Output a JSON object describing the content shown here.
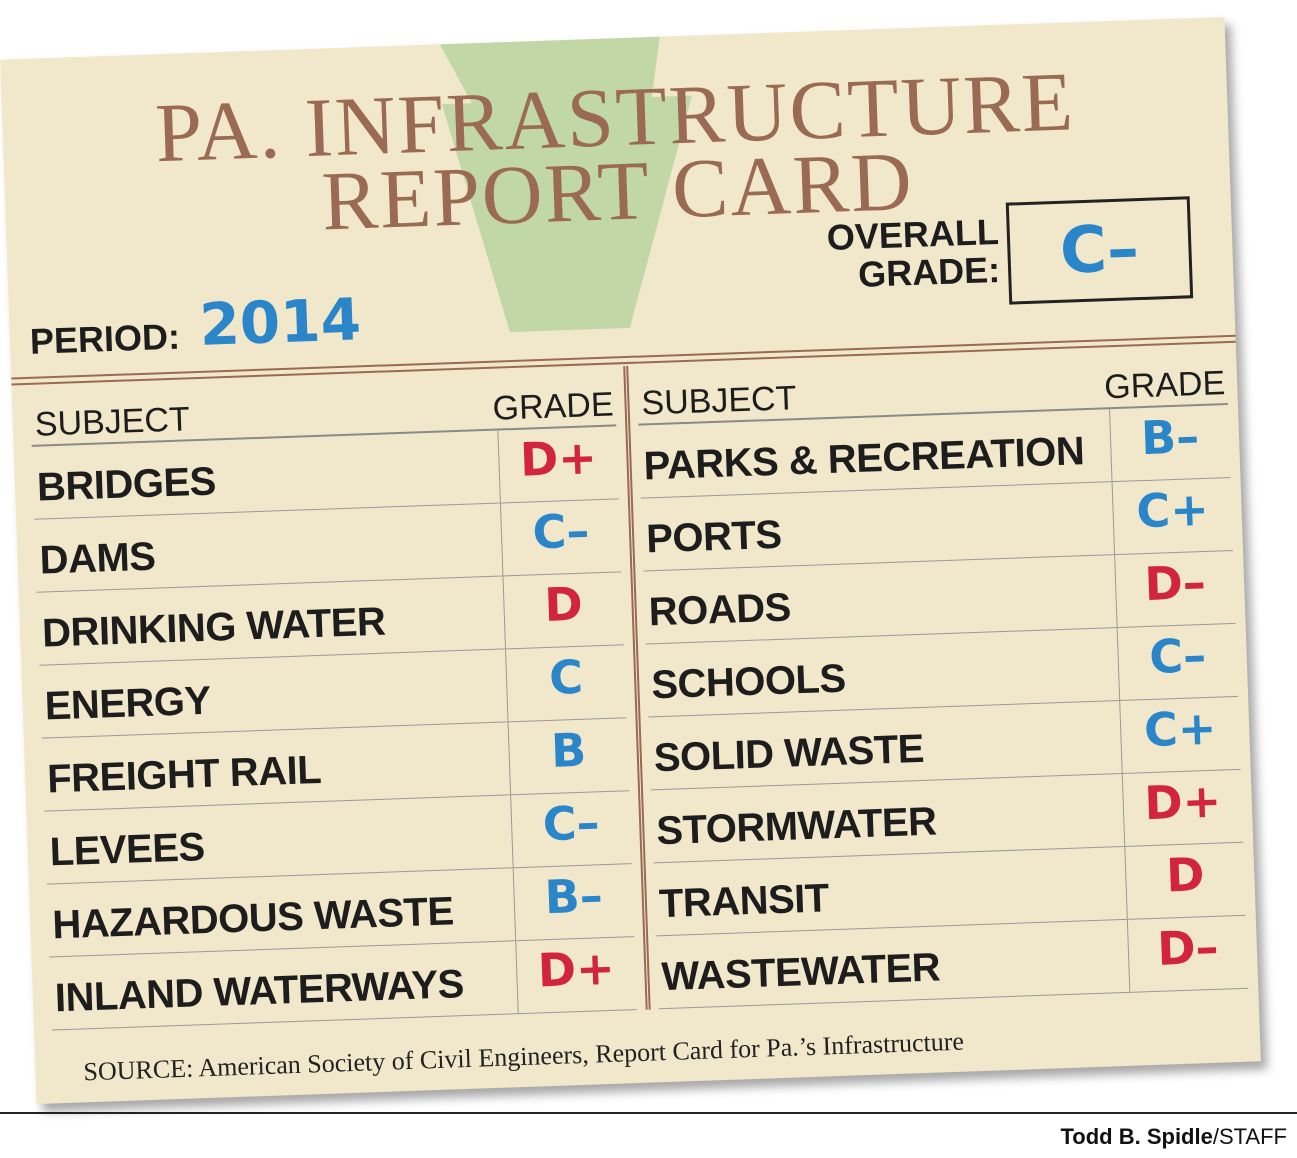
{
  "header": {
    "title": [
      "PA. INFRASTRUCTURE",
      "REPORT CARD"
    ]
  },
  "period": {
    "label": "PERIOD:",
    "value": "2014",
    "color": "#2a86c9"
  },
  "overall": {
    "label": [
      "OVERALL",
      "GRADE:"
    ],
    "value": "C–",
    "color": "#2a86c9"
  },
  "tables": [
    {
      "columns": [
        "SUBJECT",
        "GRADE"
      ],
      "rows": [
        {
          "subject": "BRIDGES",
          "grade": "D+",
          "color": "#d2233f"
        },
        {
          "subject": "DAMS",
          "grade": "C–",
          "color": "#2a86c9"
        },
        {
          "subject": "DRINKING WATER",
          "grade": "D",
          "color": "#d2233f"
        },
        {
          "subject": "ENERGY",
          "grade": "C",
          "color": "#2a86c9"
        },
        {
          "subject": "FREIGHT RAIL",
          "grade": "B",
          "color": "#2a86c9"
        },
        {
          "subject": "LEVEES",
          "grade": "C–",
          "color": "#2a86c9"
        },
        {
          "subject": "HAZARDOUS WASTE",
          "grade": "B–",
          "color": "#2a86c9"
        },
        {
          "subject": "INLAND WATERWAYS",
          "grade": "D+",
          "color": "#d2233f"
        }
      ]
    },
    {
      "columns": [
        "SUBJECT",
        "GRADE"
      ],
      "rows": [
        {
          "subject": "PARKS & RECREATION",
          "grade": "B–",
          "color": "#2a86c9"
        },
        {
          "subject": "PORTS",
          "grade": "C+",
          "color": "#2a86c9"
        },
        {
          "subject": "ROADS",
          "grade": "D–",
          "color": "#d2233f"
        },
        {
          "subject": "SCHOOLS",
          "grade": "C–",
          "color": "#2a86c9"
        },
        {
          "subject": "SOLID WASTE",
          "grade": "C+",
          "color": "#2a86c9"
        },
        {
          "subject": "STORMWATER",
          "grade": "D+",
          "color": "#d2233f"
        },
        {
          "subject": "TRANSIT",
          "grade": "D",
          "color": "#d2233f"
        },
        {
          "subject": "WASTEWATER",
          "grade": "D–",
          "color": "#d2233f"
        }
      ]
    }
  ],
  "source": "SOURCE:  American Society of Civil Engineers, Report Card for Pa.’s Infrastructure",
  "credit": {
    "name": "Todd B. Spidle",
    "suffix": "/STAFF"
  }
}
